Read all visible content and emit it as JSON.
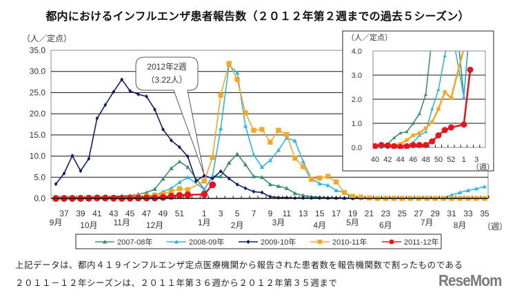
{
  "title": "都内におけるインフルエンザ患者報告数（２０１２年第２週までの過去５シーズン）",
  "footer": {
    "line1": "上記データは、都内４１９インフルエンザ定点医療機関から報告された患者数を報告機関数で割ったものである",
    "line2": "２０１１－１２年シーズンは、２０１１年第３６週から２０１２年第３５週まで"
  },
  "logo": "ReseMom",
  "callout": {
    "line1": "2012年2週",
    "line2": "（3.22人）"
  },
  "chart_data": [
    {
      "type": "line",
      "title": "",
      "ylabel": "（人／定点）",
      "xlabel": "（週）",
      "ylim": [
        0,
        35
      ],
      "yticks": [
        0,
        5,
        10,
        15,
        20,
        25,
        30,
        35
      ],
      "grid": true,
      "legend": "bottom",
      "x": [
        36,
        37,
        38,
        39,
        40,
        41,
        42,
        43,
        44,
        45,
        46,
        47,
        48,
        49,
        50,
        51,
        52,
        53,
        1,
        2,
        3,
        4,
        5,
        6,
        7,
        8,
        9,
        10,
        11,
        12,
        13,
        14,
        15,
        16,
        17,
        18,
        19,
        20,
        21,
        22,
        23,
        24,
        25,
        26,
        27,
        28,
        29,
        30,
        31,
        32,
        33,
        34,
        35
      ],
      "xtick_labels": [
        "37",
        "39",
        "41",
        "43",
        "45",
        "47",
        "49",
        "51",
        "1",
        "3",
        "5",
        "7",
        "9",
        "11",
        "13",
        "15",
        "17",
        "19",
        "21",
        "23",
        "25",
        "27",
        "29",
        "31",
        "33",
        "35"
      ],
      "months": [
        {
          "label": "9月",
          "week": 36
        },
        {
          "label": "10月",
          "week": 40
        },
        {
          "label": "11月",
          "week": 44
        },
        {
          "label": "12月",
          "week": 48
        },
        {
          "label": "1月",
          "week": 1
        },
        {
          "label": "2月",
          "week": 5
        },
        {
          "label": "3月",
          "week": 10
        },
        {
          "label": "4月",
          "week": 15
        },
        {
          "label": "5月",
          "week": 19
        },
        {
          "label": "6月",
          "week": 23
        },
        {
          "label": "7月",
          "week": 28
        },
        {
          "label": "8月",
          "week": 32
        }
      ],
      "series": [
        {
          "name": "2007-08年",
          "color": "#3d8f6a",
          "marker": "triangle",
          "values": [
            0,
            0,
            0,
            0,
            0,
            0,
            0.15,
            0.4,
            0.6,
            0.65,
            1.0,
            1.4,
            2.2,
            4.6,
            7.1,
            8.7,
            7.4,
            null,
            2.1,
            5.2,
            5.2,
            8.4,
            10.5,
            8.0,
            5.2,
            5.0,
            3.3,
            2.9,
            2.4,
            1.2,
            0.7,
            0.4,
            0.3,
            0.2,
            0.2,
            0.1,
            0.1,
            0.1,
            0.1,
            0.1,
            0.1,
            0.1,
            0.1,
            0.1,
            0.1,
            0.1,
            0.1,
            0.1,
            0,
            0,
            0,
            0,
            0
          ]
        },
        {
          "name": "2008-09年",
          "color": "#29b6e8",
          "marker": "triangle",
          "values": [
            0,
            0,
            0,
            0,
            0,
            0,
            0,
            0,
            0.05,
            0.1,
            0.2,
            0.5,
            0.65,
            1.6,
            2.4,
            3.8,
            5.0,
            null,
            2.1,
            5.2,
            16.5,
            31.5,
            29.7,
            17.1,
            10.3,
            7.4,
            9.0,
            11.4,
            14.3,
            13.6,
            8.7,
            4.6,
            3.5,
            3.1,
            1.9,
            1.4,
            0.1,
            0.3,
            0.1,
            0.1,
            0.1,
            0.1,
            0.1,
            0.1,
            0.1,
            0.1,
            0.1,
            0.1,
            0.8,
            1.4,
            1.9,
            2.3,
            2.8
          ]
        },
        {
          "name": "2009-10年",
          "color": "#0d1a6e",
          "marker": "diamond",
          "values": [
            3.4,
            5.9,
            10.1,
            6.5,
            9.4,
            18.9,
            22.1,
            25.2,
            28.1,
            25.4,
            24.6,
            24.1,
            21.0,
            16.3,
            13.7,
            12.1,
            9.9,
            4.1,
            5.4,
            4.7,
            6.4,
            4.7,
            3.3,
            2.4,
            1.6,
            1.4,
            0.4,
            0.2,
            0.2,
            0.1,
            0.1,
            0.1,
            0.1,
            0.1,
            0.1,
            0.1,
            0,
            0,
            0,
            0,
            0,
            0,
            0,
            0,
            0,
            0,
            0,
            0,
            0,
            0,
            0,
            0,
            0
          ]
        },
        {
          "name": "2010-11年",
          "color": "#f5a623",
          "marker": "square",
          "values": [
            0,
            0,
            0,
            0,
            0.1,
            0.1,
            0.1,
            0.1,
            0.15,
            0.3,
            0.5,
            0.6,
            0.8,
            1.05,
            1.6,
            2.3,
            2.05,
            null,
            4.1,
            9.7,
            24.4,
            31.9,
            28.1,
            20.2,
            16.1,
            16.3,
            13.3,
            16.1,
            15.1,
            9.5,
            7.5,
            4.5,
            4.8,
            5.2,
            3.9,
            1.4,
            0.5,
            0.3,
            0.1,
            0,
            0,
            0,
            0,
            0,
            0,
            0,
            0,
            0,
            0,
            0,
            0,
            0,
            0
          ]
        },
        {
          "name": "2011-12年",
          "color": "#e8131b",
          "marker": "circle",
          "values": [
            0,
            0,
            0,
            0,
            0.05,
            0.1,
            0.08,
            0.05,
            0.02,
            0.05,
            0.1,
            0.1,
            0.1,
            0.25,
            0.5,
            0.72,
            0.83,
            null,
            0.95,
            3.22,
            null,
            null,
            null,
            null,
            null,
            null,
            null,
            null,
            null,
            null,
            null,
            null,
            null,
            null,
            null,
            null,
            null,
            null,
            null,
            null,
            null,
            null,
            null,
            null,
            null,
            null,
            null,
            null,
            null,
            null,
            null,
            null,
            null
          ]
        }
      ]
    },
    {
      "type": "line",
      "title": "",
      "ylabel": "（人／定点）",
      "xlabel": "（週）",
      "ylim": [
        0,
        4
      ],
      "yticks": [
        0,
        1,
        2,
        3,
        4
      ],
      "grid": true,
      "x_range": [
        40,
        3
      ],
      "xtick_labels": [
        "40",
        "42",
        "44",
        "46",
        "48",
        "50",
        "52",
        "1",
        "3"
      ],
      "note": "inset zoom of the same five series, weeks 40 to 3"
    }
  ]
}
